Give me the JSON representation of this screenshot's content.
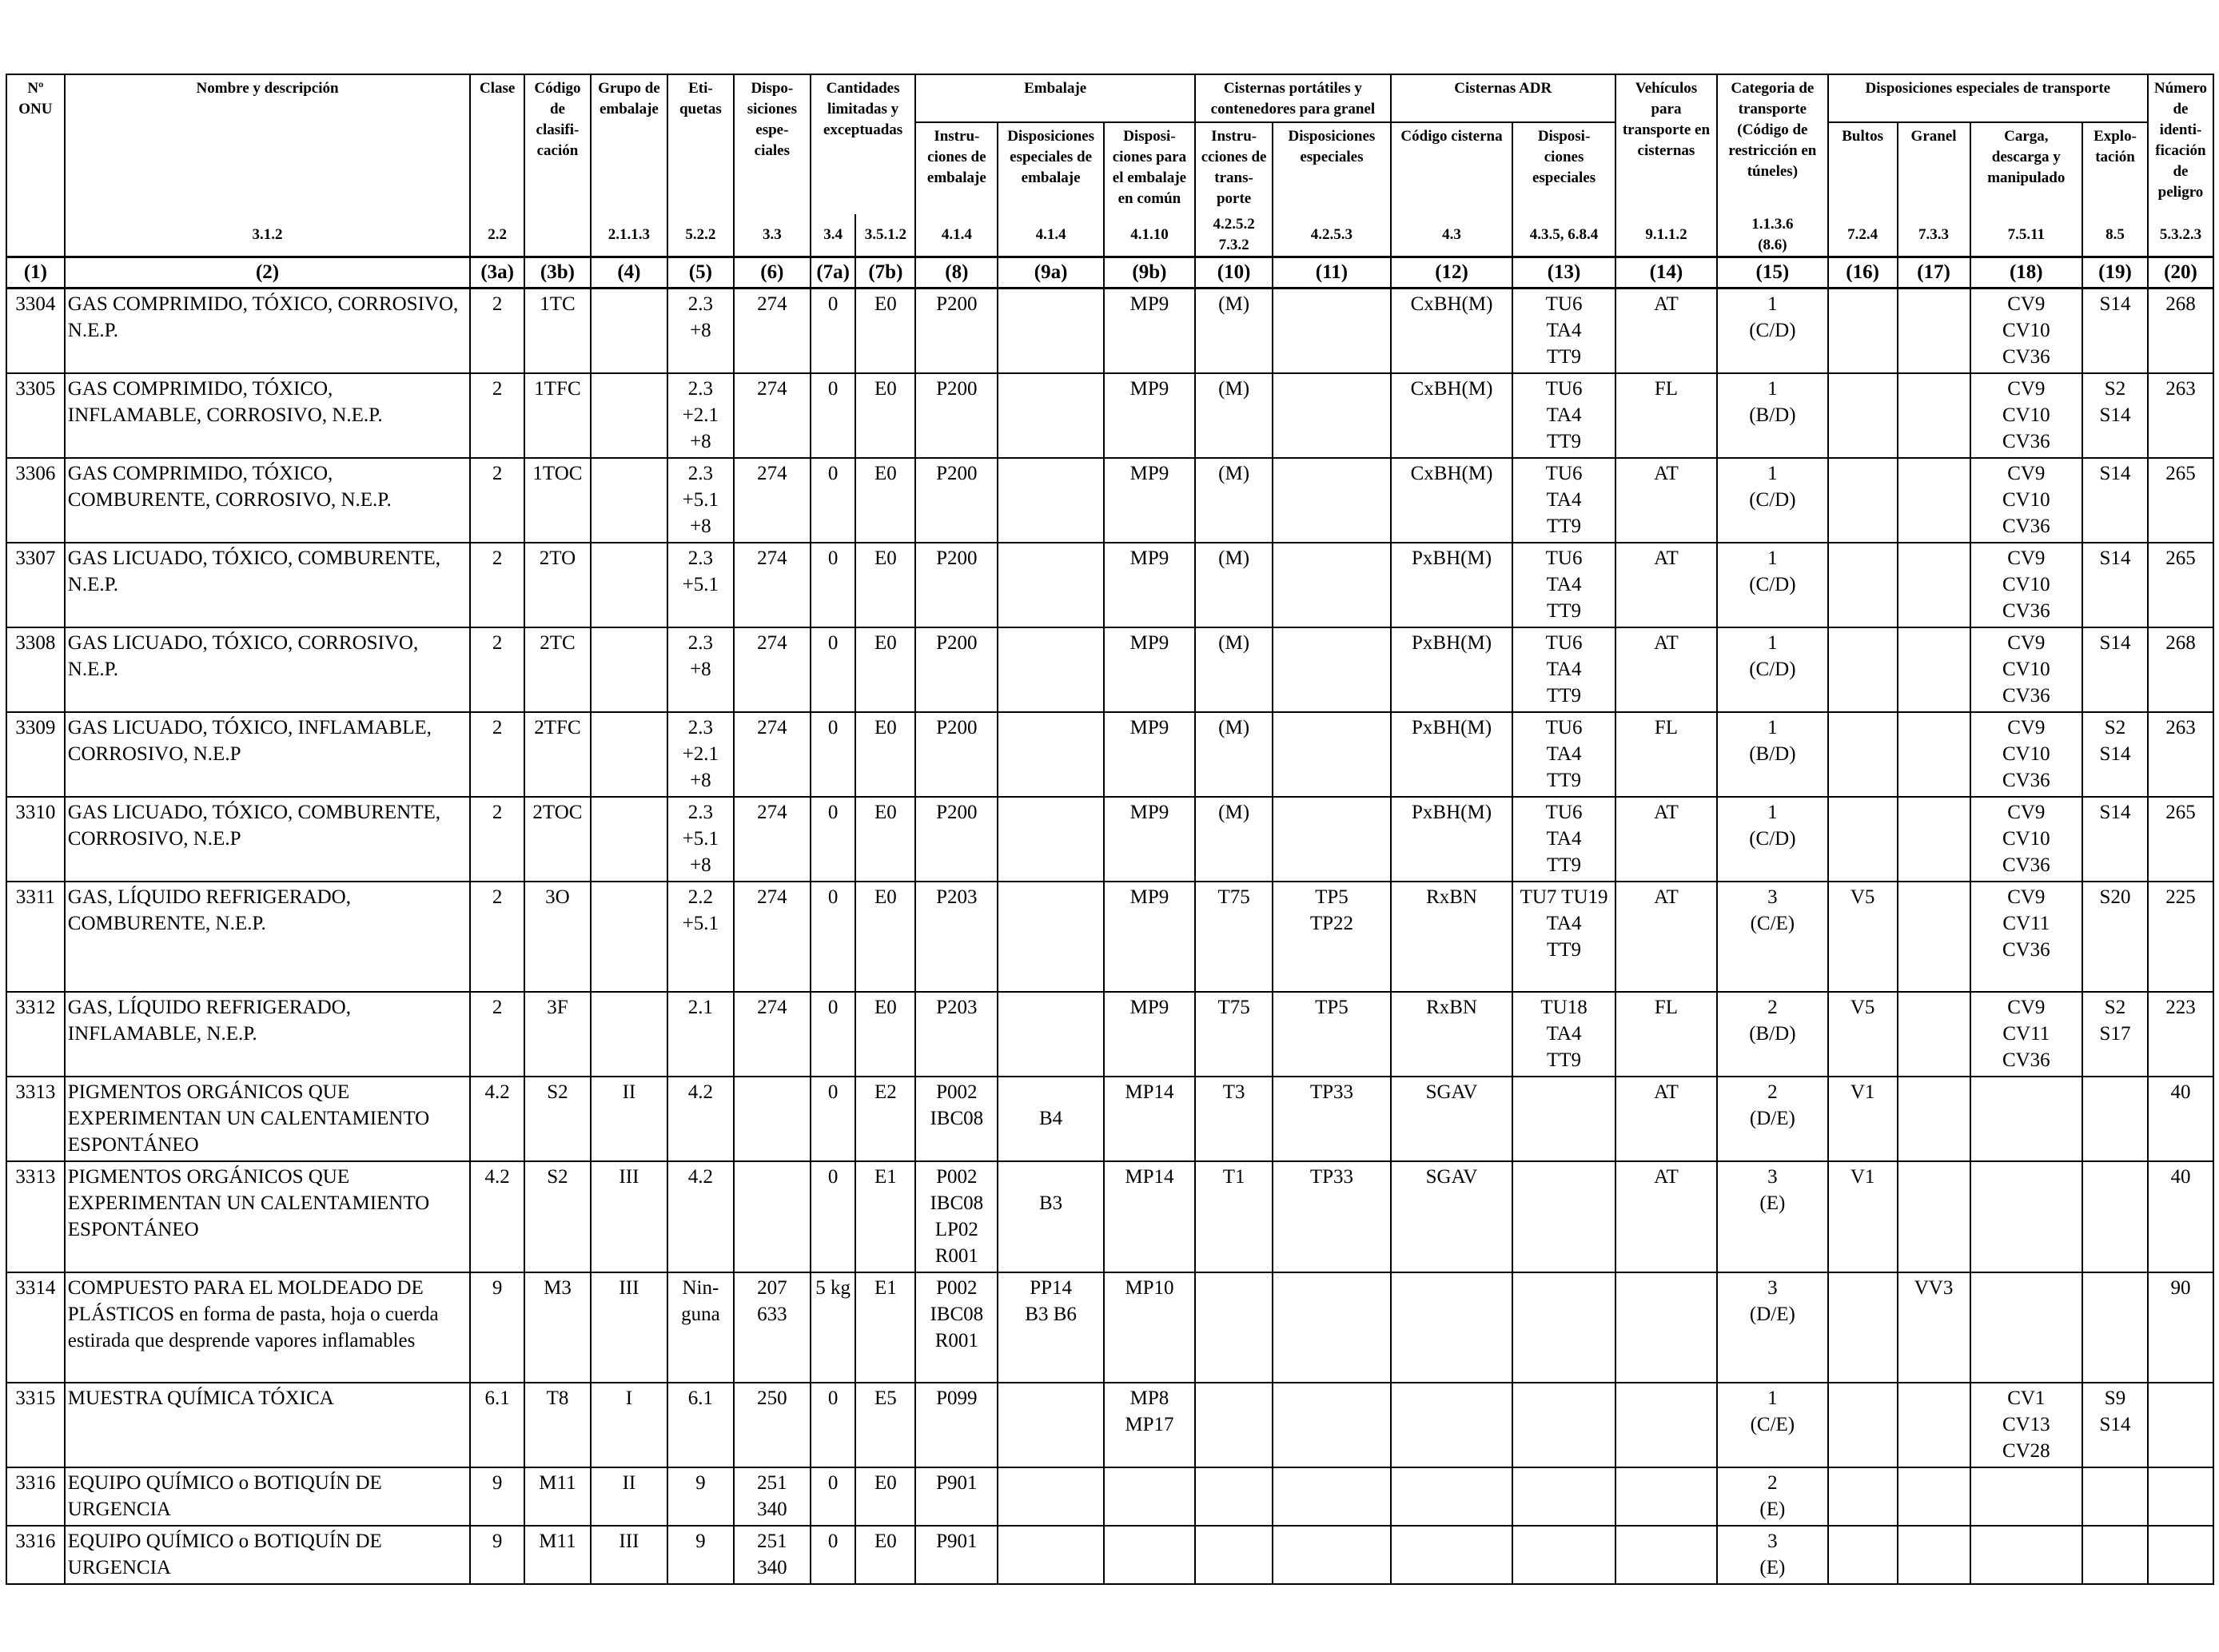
{
  "header": {
    "un_no": "Nº\nONU",
    "name": "Nombre y descripción",
    "class": "Clase",
    "classification_code": "Código\nde clasifi-\ncación",
    "packing_group": "Grupo de\nembalaje",
    "labels": "Eti-\nquetas",
    "special_provisions": "Dispo-\nsiciones\nespe-\nciales",
    "limited_quantities": "Cantidades\nlimitadas y\nexceptuadas",
    "packaging": "Embalaje",
    "packing_instructions": "Instru-\nciones de\nembalaje",
    "special_packing_provisions": "Disposiciones\nespeciales de\nembalaje",
    "mixed_packing": "Disposi-\nciones para\nel embalaje\nen común",
    "portable_tanks": "Cisternas portátiles y\ncontenedores para granel",
    "pt_instructions": "Instru-\ncciones de\ntrans-\nporte",
    "pt_special": "Disposiciones\nespeciales",
    "adr_tanks": "Cisternas ADR",
    "tank_code": "Código cisterna",
    "tank_special": "Disposi-\nciones\nespeciales",
    "vehicle": "Vehículos\npara\ntransporte en\ncisternas",
    "transport_category": "Categoria de\ntransporte\n(Código de\nrestricción en\ntúneles)",
    "special_transport": "Disposiciones especiales de transporte",
    "packages": "Bultos",
    "bulk": "Granel",
    "loading": "Carga,\ndescarga y\nmanipulado",
    "operation": "Explo-\ntación",
    "hazard_id": "Número\nde identi-\nficación\nde peligro"
  },
  "references": [
    "",
    "3.1.2",
    "2.2",
    "",
    "2.1.1.3",
    "5.2.2",
    "3.3",
    "3.4",
    "3.5.1.2",
    "4.1.4",
    "4.1.4",
    "4.1.10",
    "4.2.5.2\n7.3.2",
    "4.2.5.3",
    "4.3",
    "4.3.5, 6.8.4",
    "9.1.1.2",
    "1.1.3.6\n(8.6)",
    "7.2.4",
    "7.3.3",
    "7.5.11",
    "8.5",
    "5.3.2.3"
  ],
  "column_numbers": [
    "(1)",
    "(2)",
    "(3a)",
    "(3b)",
    "(4)",
    "(5)",
    "(6)",
    "(7a)",
    "(7b)",
    "(8)",
    "(9a)",
    "(9b)",
    "(10)",
    "(11)",
    "(12)",
    "(13)",
    "(14)",
    "(15)",
    "(16)",
    "(17)",
    "(18)",
    "(19)",
    "(20)"
  ],
  "rows": [
    {
      "un": "3304",
      "name": "GAS COMPRIMIDO, TÓXICO, CORROSIVO, N.E.P.",
      "cls": "2",
      "code": "1TC",
      "pg": "",
      "labels": "2.3\n+8",
      "sp": "274",
      "lq": "0",
      "eq": "E0",
      "pi": "P200",
      "spp": "",
      "mp": "MP9",
      "pt": "(M)",
      "pts": "",
      "tc": "CxBH(M)",
      "ts": "TU6\nTA4\nTT9",
      "veh": "AT",
      "cat": "1\n(C/D)",
      "pk": "",
      "bk": "",
      "ld": "CV9\nCV10\nCV36",
      "op": "S14",
      "hin": "268"
    },
    {
      "un": "3305",
      "name": "GAS COMPRIMIDO, TÓXICO, INFLAMABLE, CORROSIVO, N.E.P.",
      "cls": "2",
      "code": "1TFC",
      "pg": "",
      "labels": "2.3\n+2.1\n+8",
      "sp": "274",
      "lq": "0",
      "eq": "E0",
      "pi": "P200",
      "spp": "",
      "mp": "MP9",
      "pt": "(M)",
      "pts": "",
      "tc": "CxBH(M)",
      "ts": "TU6\nTA4\nTT9",
      "veh": "FL",
      "cat": "1\n(B/D)",
      "pk": "",
      "bk": "",
      "ld": "CV9\nCV10\nCV36",
      "op": "S2\nS14",
      "hin": "263"
    },
    {
      "un": "3306",
      "name": "GAS COMPRIMIDO, TÓXICO, COMBURENTE, CORROSIVO, N.E.P.",
      "cls": "2",
      "code": "1TOC",
      "pg": "",
      "labels": "2.3\n+5.1\n+8",
      "sp": "274",
      "lq": "0",
      "eq": "E0",
      "pi": "P200",
      "spp": "",
      "mp": "MP9",
      "pt": "(M)",
      "pts": "",
      "tc": "CxBH(M)",
      "ts": "TU6\nTA4\nTT9",
      "veh": "AT",
      "cat": "1\n(C/D)",
      "pk": "",
      "bk": "",
      "ld": "CV9\nCV10\nCV36",
      "op": "S14",
      "hin": "265"
    },
    {
      "un": "3307",
      "name": "GAS LICUADO, TÓXICO, COMBURENTE, N.E.P.",
      "cls": "2",
      "code": "2TO",
      "pg": "",
      "labels": "2.3\n+5.1",
      "sp": "274",
      "lq": "0",
      "eq": "E0",
      "pi": "P200",
      "spp": "",
      "mp": "MP9",
      "pt": "(M)",
      "pts": "",
      "tc": "PxBH(M)",
      "ts": "TU6\nTA4\nTT9",
      "veh": "AT",
      "cat": "1\n(C/D)",
      "pk": "",
      "bk": "",
      "ld": "CV9\nCV10\nCV36",
      "op": "S14",
      "hin": "265"
    },
    {
      "un": "3308",
      "name": "GAS LICUADO, TÓXICO, CORROSIVO, N.E.P.",
      "cls": "2",
      "code": "2TC",
      "pg": "",
      "labels": "2.3\n+8",
      "sp": "274",
      "lq": "0",
      "eq": "E0",
      "pi": "P200",
      "spp": "",
      "mp": "MP9",
      "pt": "(M)",
      "pts": "",
      "tc": "PxBH(M)",
      "ts": "TU6\nTA4\nTT9",
      "veh": "AT",
      "cat": "1\n(C/D)",
      "pk": "",
      "bk": "",
      "ld": "CV9\nCV10\nCV36",
      "op": "S14",
      "hin": "268"
    },
    {
      "un": "3309",
      "name": "GAS LICUADO, TÓXICO, INFLAMABLE, CORROSIVO, N.E.P",
      "cls": "2",
      "code": "2TFC",
      "pg": "",
      "labels": "2.3\n+2.1\n+8",
      "sp": "274",
      "lq": "0",
      "eq": "E0",
      "pi": "P200",
      "spp": "",
      "mp": "MP9",
      "pt": "(M)",
      "pts": "",
      "tc": "PxBH(M)",
      "ts": "TU6\nTA4\nTT9",
      "veh": "FL",
      "cat": "1\n(B/D)",
      "pk": "",
      "bk": "",
      "ld": "CV9\nCV10\nCV36",
      "op": "S2\nS14",
      "hin": "263"
    },
    {
      "un": "3310",
      "name": "GAS LICUADO, TÓXICO, COMBURENTE, CORROSIVO, N.E.P",
      "cls": "2",
      "code": "2TOC",
      "pg": "",
      "labels": "2.3\n+5.1\n+8",
      "sp": "274",
      "lq": "0",
      "eq": "E0",
      "pi": "P200",
      "spp": "",
      "mp": "MP9",
      "pt": "(M)",
      "pts": "",
      "tc": "PxBH(M)",
      "ts": "TU6\nTA4\nTT9",
      "veh": "AT",
      "cat": "1\n(C/D)",
      "pk": "",
      "bk": "",
      "ld": "CV9\nCV10\nCV36",
      "op": "S14",
      "hin": "265"
    },
    {
      "un": "3311",
      "name": "GAS, LÍQUIDO REFRIGERADO, COMBURENTE, N.E.P.",
      "cls": "2",
      "code": "3O",
      "pg": "",
      "labels": "2.2\n+5.1",
      "sp": "274",
      "lq": "0",
      "eq": "E0",
      "pi": "P203",
      "spp": "",
      "mp": "MP9",
      "pt": "T75",
      "pts": "TP5\nTP22",
      "tc": "RxBN",
      "ts": "TU7 TU19\nTA4\nTT9",
      "veh": "AT",
      "cat": "3\n(C/E)",
      "pk": "V5",
      "bk": "",
      "ld": "CV9\nCV11\nCV36",
      "op": "S20",
      "hin": "225"
    },
    {
      "un": "3312",
      "name": "GAS, LÍQUIDO REFRIGERADO, INFLAMABLE, N.E.P.",
      "cls": "2",
      "code": "3F",
      "pg": "",
      "labels": "2.1",
      "sp": "274",
      "lq": "0",
      "eq": "E0",
      "pi": "P203",
      "spp": "",
      "mp": "MP9",
      "pt": "T75",
      "pts": "TP5",
      "tc": "RxBN",
      "ts": "TU18\nTA4\nTT9",
      "veh": "FL",
      "cat": "2\n(B/D)",
      "pk": "V5",
      "bk": "",
      "ld": "CV9\nCV11\nCV36",
      "op": "S2\nS17",
      "hin": "223"
    },
    {
      "un": "3313",
      "name": "PIGMENTOS ORGÁNICOS QUE EXPERIMENTAN UN CALENTAMIENTO ESPONTÁNEO",
      "cls": "4.2",
      "code": "S2",
      "pg": "II",
      "labels": "4.2",
      "sp": "",
      "lq": "0",
      "eq": "E2",
      "pi": "P002\nIBC08",
      "spp": "\nB4",
      "mp": "MP14",
      "pt": "T3",
      "pts": "TP33",
      "tc": "SGAV",
      "ts": "",
      "veh": "AT",
      "cat": "2\n(D/E)",
      "pk": "V1",
      "bk": "",
      "ld": "",
      "op": "",
      "hin": "40"
    },
    {
      "un": "3313",
      "name": "PIGMENTOS ORGÁNICOS QUE EXPERIMENTAN UN CALENTAMIENTO ESPONTÁNEO",
      "cls": "4.2",
      "code": "S2",
      "pg": "III",
      "labels": "4.2",
      "sp": "",
      "lq": "0",
      "eq": "E1",
      "pi": "P002\nIBC08\nLP02\nR001",
      "spp": "\nB3",
      "mp": "MP14",
      "pt": "T1",
      "pts": "TP33",
      "tc": "SGAV",
      "ts": "",
      "veh": "AT",
      "cat": "3\n(E)",
      "pk": "V1",
      "bk": "",
      "ld": "",
      "op": "",
      "hin": "40"
    },
    {
      "un": "3314",
      "name": "COMPUESTO PARA EL MOLDEADO DE PLÁSTICOS en forma de pasta, hoja o cuerda estirada que desprende vapores inflamables",
      "cls": "9",
      "code": "M3",
      "pg": "III",
      "labels": "Nin-\nguna",
      "sp": "207\n633",
      "lq": "5 kg",
      "eq": "E1",
      "pi": "P002\nIBC08\nR001",
      "spp": "PP14\nB3 B6",
      "mp": "MP10",
      "pt": "",
      "pts": "",
      "tc": "",
      "ts": "",
      "veh": "",
      "cat": "3\n(D/E)",
      "pk": "",
      "bk": "VV3",
      "ld": "",
      "op": "",
      "hin": "90"
    },
    {
      "un": "3315",
      "name": "MUESTRA QUÍMICA TÓXICA",
      "cls": "6.1",
      "code": "T8",
      "pg": "I",
      "labels": "6.1",
      "sp": "250",
      "lq": "0",
      "eq": "E5",
      "pi": "P099",
      "spp": "",
      "mp": "MP8\nMP17",
      "pt": "",
      "pts": "",
      "tc": "",
      "ts": "",
      "veh": "",
      "cat": "1\n(C/E)",
      "pk": "",
      "bk": "",
      "ld": "CV1\nCV13\nCV28",
      "op": "S9\nS14",
      "hin": ""
    },
    {
      "un": "3316",
      "name": "EQUIPO QUÍMICO o BOTIQUÍN DE URGENCIA",
      "cls": "9",
      "code": "M11",
      "pg": "II",
      "labels": "9",
      "sp": "251\n340",
      "lq": "0",
      "eq": "E0",
      "pi": "P901",
      "spp": "",
      "mp": "",
      "pt": "",
      "pts": "",
      "tc": "",
      "ts": "",
      "veh": "",
      "cat": "2\n(E)",
      "pk": "",
      "bk": "",
      "ld": "",
      "op": "",
      "hin": ""
    },
    {
      "un": "3316",
      "name": "EQUIPO QUÍMICO o BOTIQUÍN DE URGENCIA",
      "cls": "9",
      "code": "M11",
      "pg": "III",
      "labels": "9",
      "sp": "251\n340",
      "lq": "0",
      "eq": "E0",
      "pi": "P901",
      "spp": "",
      "mp": "",
      "pt": "",
      "pts": "",
      "tc": "",
      "ts": "",
      "veh": "",
      "cat": "3\n(E)",
      "pk": "",
      "bk": "",
      "ld": "",
      "op": "",
      "hin": ""
    }
  ]
}
